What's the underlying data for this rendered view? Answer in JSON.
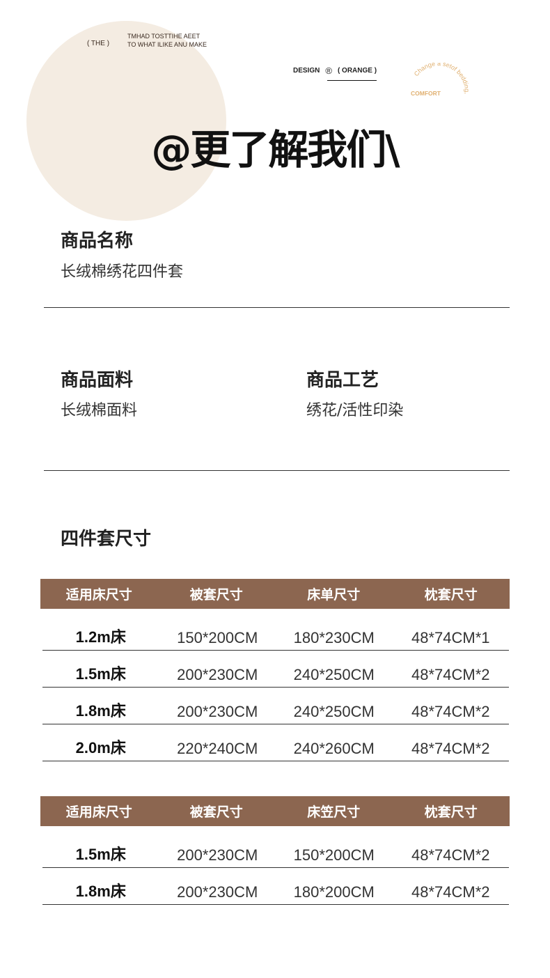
{
  "deco": {
    "the": "(  THE  )",
    "line1": "TMHAD TOSTTIHE AEET",
    "line2": "TO WHAT ILIKE ANU MAKE",
    "design": "DESIGN",
    "reg": "®",
    "orange": "( ORANGE )",
    "arc": "Change a setof bedding,",
    "comfort": "COMFORT",
    "accent": "#e0b070"
  },
  "title": "@更了解我们\\",
  "name": {
    "label": "商品名称",
    "value": "长绒棉绣花四件套"
  },
  "fabric": {
    "label": "商品面料",
    "value": "长绒棉面料"
  },
  "craft": {
    "label": "商品工艺",
    "value": "绣花/活性印染"
  },
  "size_title": "四件套尺寸",
  "header_color": "#8c6650",
  "table1": {
    "headers": [
      "适用床尺寸",
      "被套尺寸",
      "床单尺寸",
      "枕套尺寸"
    ],
    "rows": [
      [
        "1.2m床",
        "150*200CM",
        "180*230CM",
        "48*74CM*1"
      ],
      [
        "1.5m床",
        "200*230CM",
        "240*250CM",
        "48*74CM*2"
      ],
      [
        "1.8m床",
        "200*230CM",
        "240*250CM",
        "48*74CM*2"
      ],
      [
        "2.0m床",
        "220*240CM",
        "240*260CM",
        "48*74CM*2"
      ]
    ]
  },
  "table2": {
    "headers": [
      "适用床尺寸",
      "被套尺寸",
      "床笠尺寸",
      "枕套尺寸"
    ],
    "rows": [
      [
        "1.5m床",
        "200*230CM",
        "150*200CM",
        "48*74CM*2"
      ],
      [
        "1.8m床",
        "200*230CM",
        "180*200CM",
        "48*74CM*2"
      ]
    ]
  }
}
